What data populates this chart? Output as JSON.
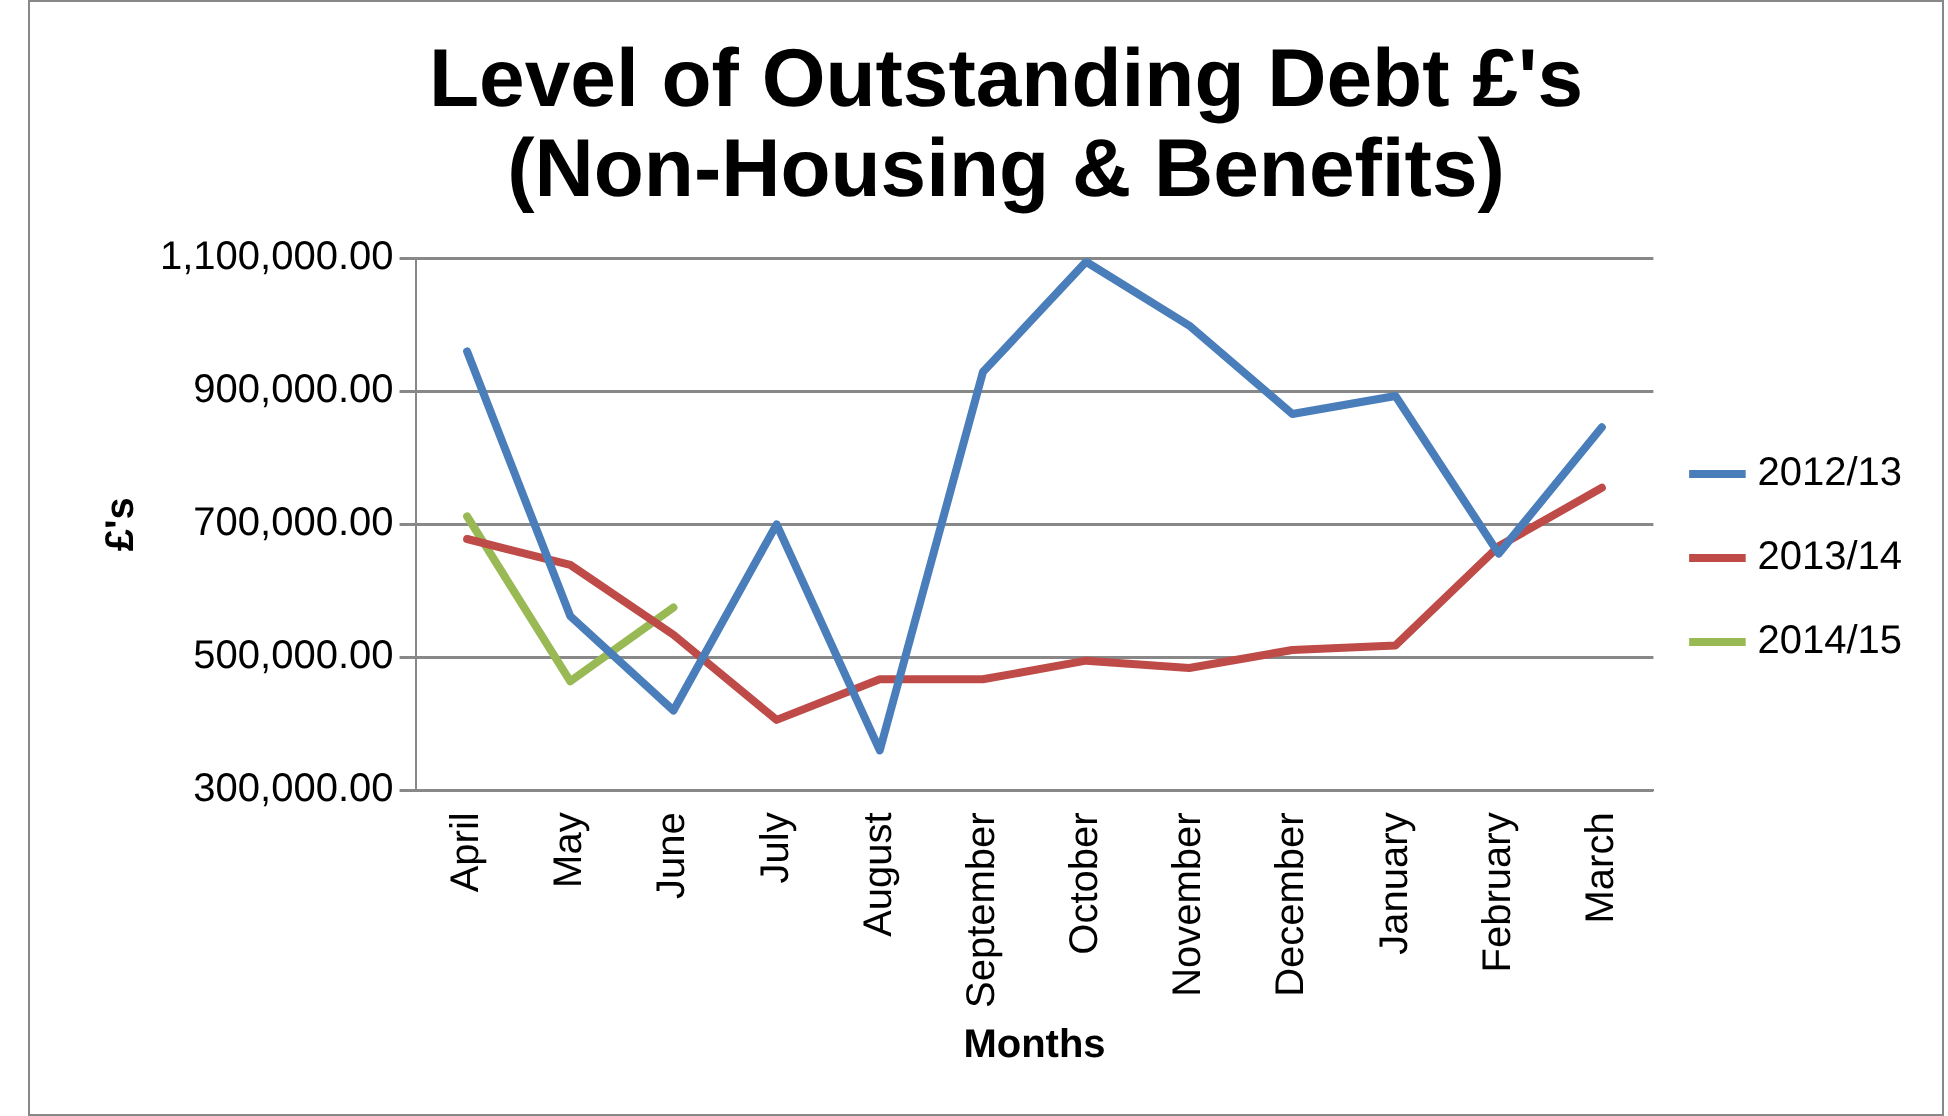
{
  "chart_data": {
    "type": "line",
    "title": [
      "Level of Outstanding Debt £'s",
      "(Non-Housing & Benefits)"
    ],
    "xlabel": "Months",
    "ylabel": "£'s",
    "categories": [
      "April",
      "May",
      "June",
      "July",
      "August",
      "September",
      "October",
      "November",
      "December",
      "January",
      "February",
      "March"
    ],
    "series": [
      {
        "name": "2012/13",
        "color": "#4a7ebb",
        "values": [
          960000,
          562000,
          420000,
          700000,
          360000,
          929000,
          1095000,
          999000,
          866000,
          893000,
          656000,
          846000
        ]
      },
      {
        "name": "2013/14",
        "color": "#be4b48",
        "values": [
          678000,
          639000,
          534000,
          406000,
          467000,
          467000,
          495000,
          484000,
          511000,
          518000,
          667000,
          755000
        ]
      },
      {
        "name": "2014/15",
        "color": "#98b954",
        "values": [
          712000,
          464000,
          575000,
          null,
          null,
          null,
          null,
          null,
          null,
          null,
          null,
          null
        ]
      }
    ],
    "ylim": [
      300000,
      1100000
    ],
    "yticks": [
      {
        "value": 300000,
        "label": "300,000.00"
      },
      {
        "value": 500000,
        "label": "500,000.00"
      },
      {
        "value": 700000,
        "label": "700,000.00"
      },
      {
        "value": 900000,
        "label": "900,000.00"
      },
      {
        "value": 1100000,
        "label": "1,100,000.00"
      }
    ],
    "grid": "y",
    "legend": "right",
    "marker": "none",
    "line_style": "solid"
  }
}
